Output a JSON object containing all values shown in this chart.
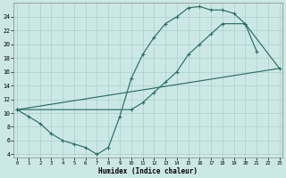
{
  "bg_color": "#cce8e6",
  "line_color": "#2a6e62",
  "grid_color": "#aacfcb",
  "xlim": [
    -0.3,
    23.3
  ],
  "ylim": [
    3.5,
    26.0
  ],
  "xticks": [
    0,
    1,
    2,
    3,
    4,
    5,
    6,
    7,
    8,
    9,
    10,
    11,
    12,
    13,
    14,
    15,
    16,
    17,
    18,
    19,
    20,
    21,
    22,
    23
  ],
  "yticks": [
    4,
    6,
    8,
    10,
    12,
    14,
    16,
    18,
    20,
    22,
    24
  ],
  "xlabel": "Humidex (Indice chaleur)",
  "curve1_x": [
    0,
    1,
    2,
    3,
    4,
    5,
    6,
    7,
    8,
    9,
    10,
    11,
    12,
    13,
    14,
    15,
    16,
    17,
    18,
    19,
    20,
    21
  ],
  "curve1_y": [
    10.5,
    9.5,
    8.5,
    7.0,
    6.0,
    5.5,
    5.0,
    4.0,
    5.0,
    9.5,
    15.0,
    18.5,
    21.0,
    23.0,
    24.0,
    25.3,
    25.5,
    25.0,
    25.0,
    24.5,
    23.0,
    19.0
  ],
  "curve2_x": [
    0,
    10,
    11,
    12,
    13,
    14,
    15,
    16,
    17,
    18,
    20,
    23
  ],
  "curve2_y": [
    10.5,
    10.5,
    11.5,
    13.0,
    14.5,
    16.0,
    18.5,
    20.0,
    21.5,
    23.0,
    23.0,
    16.5
  ],
  "curve3_x": [
    0,
    23
  ],
  "curve3_y": [
    10.5,
    16.5
  ]
}
